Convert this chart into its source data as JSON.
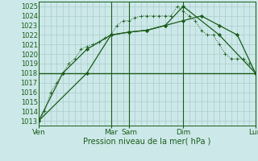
{
  "xlabel": "Pression niveau de la mer( hPa )",
  "bg_color": "#cce8e8",
  "grid_color": "#aacccc",
  "line_color": "#1a5c1a",
  "ylim": [
    1012.5,
    1025.5
  ],
  "xlim": [
    0,
    36
  ],
  "yticks": [
    1013,
    1014,
    1015,
    1016,
    1017,
    1018,
    1019,
    1020,
    1021,
    1022,
    1023,
    1024,
    1025
  ],
  "day_labels": [
    "Ven",
    "Mar",
    "Sam",
    "Dim",
    "Lun"
  ],
  "day_positions": [
    0,
    12,
    15,
    24,
    36
  ],
  "vline_positions": [
    0,
    12,
    15,
    24,
    36
  ],
  "hline_y": 1018.0,
  "line1_x": [
    0,
    1,
    2,
    3,
    4,
    5,
    6,
    7,
    8,
    9,
    10,
    11,
    12,
    13,
    14,
    15,
    16,
    17,
    18,
    19,
    20,
    21,
    22,
    23,
    24,
    25,
    26,
    27,
    28,
    29,
    30,
    31,
    32,
    33,
    34,
    35,
    36
  ],
  "line1_y": [
    1013.0,
    1014.0,
    1016.0,
    1017.0,
    1018.0,
    1019.0,
    1019.5,
    1020.5,
    1020.8,
    1021.0,
    1021.3,
    1021.7,
    1022.0,
    1023.0,
    1023.5,
    1023.5,
    1023.8,
    1024.0,
    1024.0,
    1024.0,
    1024.0,
    1024.0,
    1024.0,
    1025.0,
    1024.5,
    1024.0,
    1023.5,
    1022.5,
    1022.0,
    1022.0,
    1021.0,
    1020.0,
    1019.5,
    1019.5,
    1019.5,
    1019.0,
    1018.0
  ],
  "line2_x": [
    0,
    4,
    8,
    12,
    15,
    18,
    21,
    24,
    27,
    30,
    33,
    36
  ],
  "line2_y": [
    1013.0,
    1018.0,
    1020.5,
    1022.0,
    1022.3,
    1022.5,
    1023.0,
    1023.5,
    1024.0,
    1023.0,
    1022.0,
    1018.0
  ],
  "line3_x": [
    0,
    8,
    12,
    15,
    18,
    21,
    24,
    30,
    36
  ],
  "line3_y": [
    1013.0,
    1018.0,
    1022.0,
    1022.3,
    1022.5,
    1023.0,
    1025.0,
    1022.0,
    1018.0
  ]
}
